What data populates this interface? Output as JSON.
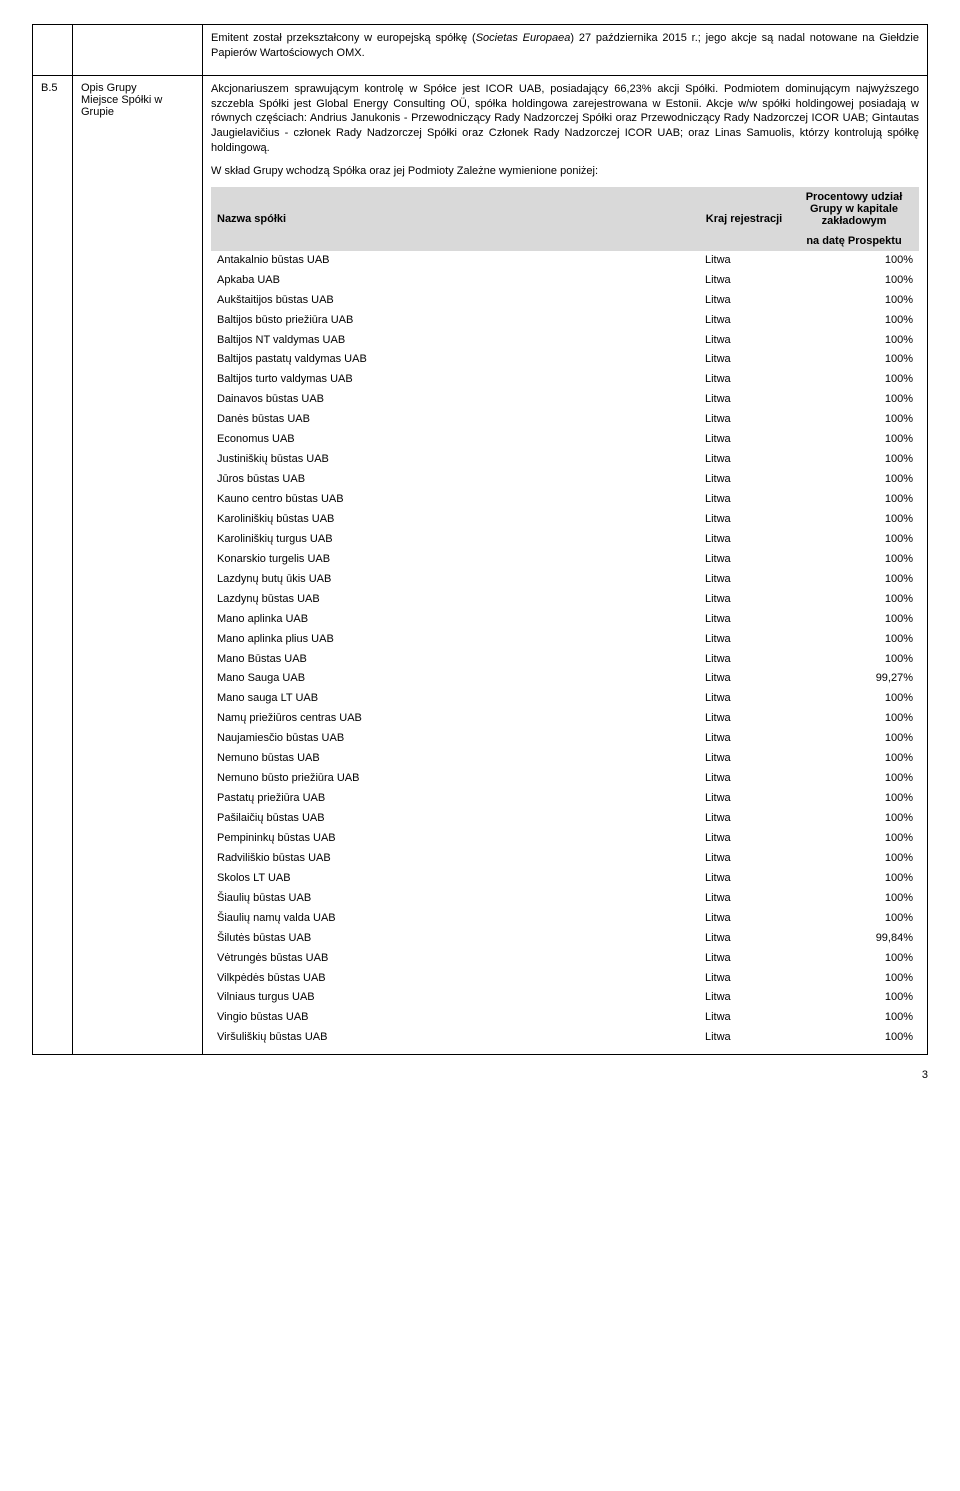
{
  "row1": {
    "para": "Emitent został przekształcony w europejską spółkę (Societas Europaea) 27 października 2015 r.; jego akcje są nadal notowane na Giełdzie Papierów Wartościowych OMX.",
    "italic_span": "Societas Europaea"
  },
  "row2": {
    "id": "B.5",
    "label_line1": "Opis Grupy",
    "label_line2": "Miejsce Spółki w Grupie",
    "para1": "Akcjonariuszem sprawującym kontrolę w Spółce jest ICOR UAB, posiadający 66,23% akcji Spółki. Podmiotem dominującym najwyższego szczebla Spółki jest Global Energy Consulting OÜ, spółka holdingowa zarejestrowana w Estonii. Akcje w/w spółki holdingowej posiadają w równych częściach: Andrius Janukonis - Przewodniczący Rady Nadzorczej Spółki oraz Przewodniczący Rady Nadzorczej ICOR UAB; Gintautas Jaugielavičius - członek Rady Nadzorczej Spółki oraz Członek Rady Nadzorczej ICOR UAB; oraz Linas Samuolis, którzy kontrolują spółkę holdingową.",
    "para2": "W skład Grupy wchodzą Spółka oraz jej Podmioty Zależne wymienione poniżej:"
  },
  "inner_headers": {
    "name": "Nazwa spółki",
    "country": "Kraj rejestracji",
    "pct_line1": "Procentowy udział Grupy w kapitale zakładowym",
    "pct_line2": "na datę Prospektu"
  },
  "rows": [
    {
      "name": "Antakalnio būstas UAB",
      "country": "Litwa",
      "pct": "100%"
    },
    {
      "name": "Apkaba UAB",
      "country": "Litwa",
      "pct": "100%"
    },
    {
      "name": "Aukštaitijos būstas UAB",
      "country": "Litwa",
      "pct": "100%"
    },
    {
      "name": "Baltijos būsto priežiūra UAB",
      "country": "Litwa",
      "pct": "100%"
    },
    {
      "name": "Baltijos NT valdymas UAB",
      "country": "Litwa",
      "pct": "100%"
    },
    {
      "name": "Baltijos pastatų valdymas UAB",
      "country": "Litwa",
      "pct": "100%"
    },
    {
      "name": "Baltijos turto valdymas UAB",
      "country": "Litwa",
      "pct": "100%"
    },
    {
      "name": "Dainavos būstas UAB",
      "country": "Litwa",
      "pct": "100%"
    },
    {
      "name": "Danės būstas UAB",
      "country": "Litwa",
      "pct": "100%"
    },
    {
      "name": "Economus UAB",
      "country": "Litwa",
      "pct": "100%"
    },
    {
      "name": "Justiniškių būstas UAB",
      "country": "Litwa",
      "pct": "100%"
    },
    {
      "name": "Jūros būstas UAB",
      "country": "Litwa",
      "pct": "100%"
    },
    {
      "name": "Kauno centro būstas UAB",
      "country": "Litwa",
      "pct": "100%"
    },
    {
      "name": "Karoliniškių būstas UAB",
      "country": "Litwa",
      "pct": "100%"
    },
    {
      "name": "Karoliniškių turgus UAB",
      "country": "Litwa",
      "pct": "100%"
    },
    {
      "name": "Konarskio turgelis UAB",
      "country": "Litwa",
      "pct": "100%"
    },
    {
      "name": "Lazdynų butų ūkis UAB",
      "country": "Litwa",
      "pct": "100%"
    },
    {
      "name": "Lazdynų būstas UAB",
      "country": "Litwa",
      "pct": "100%"
    },
    {
      "name": "Mano aplinka UAB",
      "country": "Litwa",
      "pct": "100%"
    },
    {
      "name": "Mano aplinka plius UAB",
      "country": "Litwa",
      "pct": "100%"
    },
    {
      "name": "Mano Būstas UAB",
      "country": "Litwa",
      "pct": "100%"
    },
    {
      "name": "Mano Sauga UAB",
      "country": "Litwa",
      "pct": "99,27%"
    },
    {
      "name": "Mano sauga LT UAB",
      "country": "Litwa",
      "pct": "100%"
    },
    {
      "name": "Namų priežiūros centras UAB",
      "country": "Litwa",
      "pct": "100%"
    },
    {
      "name": "Naujamiesčio būstas UAB",
      "country": "Litwa",
      "pct": "100%"
    },
    {
      "name": "Nemuno būstas UAB",
      "country": "Litwa",
      "pct": "100%"
    },
    {
      "name": "Nemuno būsto priežiūra UAB",
      "country": "Litwa",
      "pct": "100%"
    },
    {
      "name": "Pastatų priežiūra UAB",
      "country": "Litwa",
      "pct": "100%"
    },
    {
      "name": "Pašilaičių būstas UAB",
      "country": "Litwa",
      "pct": "100%"
    },
    {
      "name": "Pempininkų būstas UAB",
      "country": "Litwa",
      "pct": "100%"
    },
    {
      "name": "Radviliškio būstas UAB",
      "country": "Litwa",
      "pct": "100%"
    },
    {
      "name": "Skolos LT UAB",
      "country": "Litwa",
      "pct": "100%"
    },
    {
      "name": "Šiaulių būstas UAB",
      "country": "Litwa",
      "pct": "100%"
    },
    {
      "name": "Šiaulių namų valda UAB",
      "country": "Litwa",
      "pct": "100%"
    },
    {
      "name": "Šilutės būstas UAB",
      "country": "Litwa",
      "pct": "99,84%"
    },
    {
      "name": "Vėtrungės būstas UAB",
      "country": "Litwa",
      "pct": "100%"
    },
    {
      "name": "Vilkpėdės būstas UAB",
      "country": "Litwa",
      "pct": "100%"
    },
    {
      "name": "Vilniaus turgus UAB",
      "country": "Litwa",
      "pct": "100%"
    },
    {
      "name": "Vingio būstas UAB",
      "country": "Litwa",
      "pct": "100%"
    },
    {
      "name": "Viršuliškių būstas UAB",
      "country": "Litwa",
      "pct": "100%"
    }
  ],
  "page_number": "3"
}
